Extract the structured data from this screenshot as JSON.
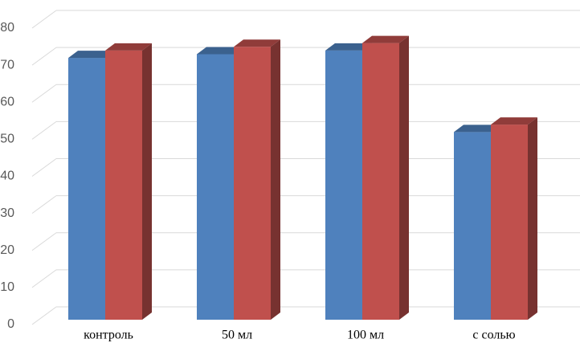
{
  "chart_data": {
    "type": "bar3d",
    "categories": [
      "контроль",
      "50 мл",
      "100 мл",
      "с солью"
    ],
    "series": [
      {
        "color": "#4f81bd",
        "values": [
          75,
          76,
          77,
          55
        ]
      },
      {
        "color": "#c0504d",
        "values": [
          77,
          78,
          79,
          57
        ]
      }
    ],
    "ylim": [
      0,
      80
    ],
    "yticks": [
      0,
      10,
      20,
      30,
      40,
      50,
      60,
      70,
      80
    ],
    "grid": true
  }
}
